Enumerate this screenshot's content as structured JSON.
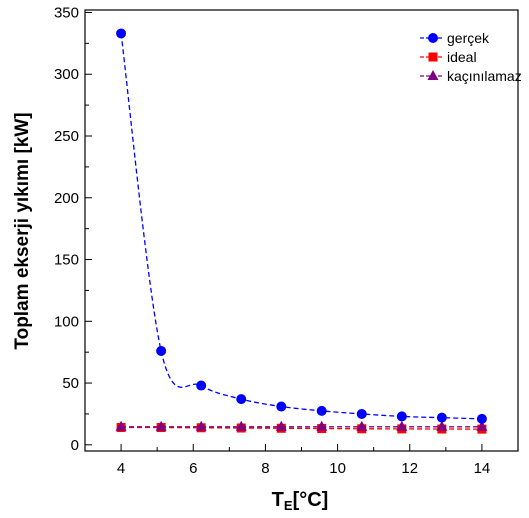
{
  "chart_data": {
    "type": "line",
    "title": "",
    "xlabel_main": "T",
    "xlabel_sub": "E",
    "xlabel_rest": "[°C]",
    "ylabel": "Toplam ekserji yıkımı [kW]",
    "xlim": [
      3,
      15
    ],
    "ylim": [
      -5,
      352
    ],
    "xticks": [
      4,
      6,
      8,
      10,
      12,
      14
    ],
    "yticks": [
      0,
      50,
      100,
      150,
      200,
      250,
      300,
      350
    ],
    "grid": false,
    "legend_position": "top-right",
    "x": [
      4,
      5.11,
      6.22,
      7.33,
      8.44,
      9.56,
      10.67,
      11.78,
      12.89,
      14
    ],
    "series": [
      {
        "name": "gerçek",
        "color": "#0000ff",
        "marker": "circle",
        "values": [
          333,
          76,
          48,
          37,
          31,
          27.5,
          25,
          23,
          22,
          21
        ]
      },
      {
        "name": "ideal",
        "color": "#ff0000",
        "marker": "square",
        "values": [
          14,
          14,
          13.8,
          13.6,
          13.4,
          13.2,
          13,
          12.9,
          12.8,
          12.7
        ]
      },
      {
        "name": "kaçınılamaz",
        "color": "#800080",
        "marker": "triangle",
        "values": [
          14.6,
          14.6,
          14.6,
          14.6,
          14.6,
          14.6,
          14.6,
          14.6,
          14.6,
          14.6
        ]
      }
    ]
  }
}
